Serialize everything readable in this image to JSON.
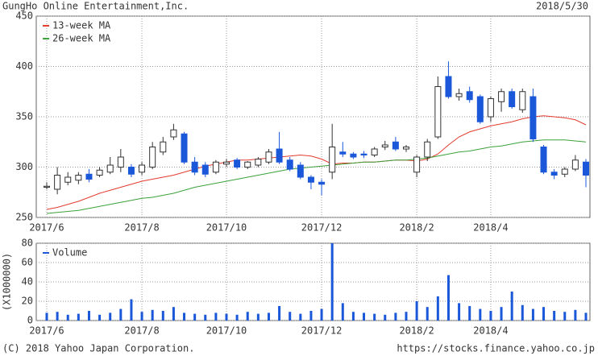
{
  "header": {
    "title": "GungHo Online Entertainment,Inc.",
    "date": "2018/5/30"
  },
  "footer": {
    "copyright": "(C) 2018 Yahoo Japan Corporation.",
    "url": "https://stocks.finance.yahoo.co.jp"
  },
  "chart_data": [
    {
      "type": "candlestick",
      "categories": [
        "2017/6",
        null,
        null,
        null,
        null,
        null,
        null,
        null,
        null,
        "2017/8",
        null,
        null,
        null,
        null,
        null,
        null,
        null,
        "2017/10",
        null,
        null,
        null,
        null,
        null,
        null,
        null,
        null,
        "2017/12",
        null,
        null,
        null,
        null,
        null,
        null,
        null,
        null,
        "2018/2",
        null,
        null,
        null,
        null,
        null,
        null,
        "2018/4",
        null,
        null,
        null,
        null,
        null,
        null,
        null,
        null,
        null
      ],
      "open": [
        280,
        278,
        285,
        287,
        293,
        292,
        295,
        300,
        300,
        295,
        300,
        315,
        330,
        333,
        305,
        302,
        295,
        303,
        307,
        300,
        302,
        305,
        318,
        307,
        302,
        290,
        285,
        295,
        315,
        313,
        313,
        312,
        320,
        325,
        318,
        295,
        310,
        330,
        390,
        370,
        375,
        370,
        350,
        365,
        375,
        357,
        370,
        320,
        295,
        293,
        298,
        305
      ],
      "high": [
        285,
        300,
        295,
        295,
        298,
        300,
        310,
        318,
        303,
        305,
        325,
        330,
        343,
        335,
        310,
        305,
        307,
        308,
        309,
        306,
        310,
        318,
        335,
        310,
        305,
        292,
        288,
        343,
        325,
        315,
        316,
        320,
        326,
        330,
        322,
        312,
        328,
        390,
        405,
        378,
        380,
        372,
        370,
        378,
        378,
        378,
        378,
        322,
        298,
        300,
        312,
        308
      ],
      "low": [
        278,
        273,
        282,
        283,
        285,
        290,
        293,
        295,
        290,
        292,
        298,
        312,
        327,
        303,
        292,
        290,
        293,
        300,
        298,
        298,
        300,
        303,
        303,
        296,
        288,
        278,
        272,
        288,
        310,
        308,
        309,
        310,
        317,
        316,
        315,
        290,
        306,
        328,
        368,
        366,
        364,
        343,
        345,
        355,
        358,
        354,
        325,
        293,
        288,
        290,
        296,
        280
      ],
      "close": [
        281,
        292,
        290,
        292,
        288,
        297,
        302,
        310,
        293,
        302,
        320,
        325,
        337,
        305,
        295,
        293,
        305,
        305,
        300,
        305,
        308,
        315,
        305,
        298,
        290,
        285,
        283,
        320,
        313,
        310,
        312,
        318,
        322,
        318,
        320,
        310,
        325,
        380,
        370,
        373,
        367,
        345,
        368,
        375,
        360,
        375,
        328,
        295,
        292,
        298,
        307,
        292
      ],
      "up_color": "#ffffff",
      "down_color": "#1b58d9",
      "series": [
        {
          "name": "13-week MA",
          "color": "#e33b2e",
          "values": [
            258,
            260,
            263,
            266,
            270,
            274,
            277,
            280,
            283,
            286,
            288,
            290,
            292,
            295,
            298,
            301,
            303,
            305,
            307,
            307,
            308,
            309,
            310,
            311,
            312,
            311,
            308,
            303,
            304,
            304,
            305,
            305,
            306,
            307,
            307,
            306,
            308,
            313,
            322,
            330,
            335,
            338,
            341,
            343,
            345,
            348,
            350,
            351,
            350,
            349,
            347,
            342
          ]
        },
        {
          "name": "26-week MA",
          "color": "#3aa23a",
          "values": [
            254,
            255,
            256,
            257,
            259,
            261,
            263,
            265,
            267,
            269,
            270,
            272,
            274,
            277,
            280,
            282,
            284,
            286,
            288,
            290,
            292,
            294,
            296,
            298,
            299,
            300,
            301,
            302,
            303,
            304,
            305,
            305,
            306,
            307,
            307,
            308,
            309,
            311,
            313,
            315,
            316,
            318,
            320,
            321,
            323,
            325,
            326,
            327,
            327,
            327,
            326,
            325
          ]
        }
      ],
      "ylim": [
        250,
        450
      ],
      "yticks": [
        250,
        300,
        350,
        400,
        450
      ],
      "grid": true,
      "legend": "upper-left"
    },
    {
      "type": "bar",
      "ylabel": "(X1000000)",
      "categories": [
        "2017/6",
        null,
        null,
        null,
        null,
        null,
        null,
        null,
        null,
        "2017/8",
        null,
        null,
        null,
        null,
        null,
        null,
        null,
        "2017/10",
        null,
        null,
        null,
        null,
        null,
        null,
        null,
        null,
        "2017/12",
        null,
        null,
        null,
        null,
        null,
        null,
        null,
        null,
        "2018/2",
        null,
        null,
        null,
        null,
        null,
        null,
        "2018/4",
        null,
        null,
        null,
        null,
        null,
        null,
        null,
        null,
        null
      ],
      "series": [
        {
          "name": "Volume",
          "color": "#1b58d9",
          "values": [
            8,
            9,
            6,
            7,
            10,
            6,
            8,
            12,
            22,
            9,
            11,
            10,
            14,
            8,
            7,
            6,
            8,
            7,
            6,
            9,
            7,
            8,
            15,
            9,
            7,
            10,
            12,
            80,
            18,
            9,
            8,
            7,
            6,
            8,
            9,
            20,
            14,
            25,
            47,
            18,
            15,
            12,
            10,
            14,
            30,
            16,
            12,
            14,
            10,
            9,
            11,
            8
          ]
        }
      ],
      "ylim": [
        0,
        80
      ],
      "yticks": [
        0,
        20,
        40,
        60,
        80
      ],
      "grid": true,
      "legend": "upper-left"
    }
  ]
}
